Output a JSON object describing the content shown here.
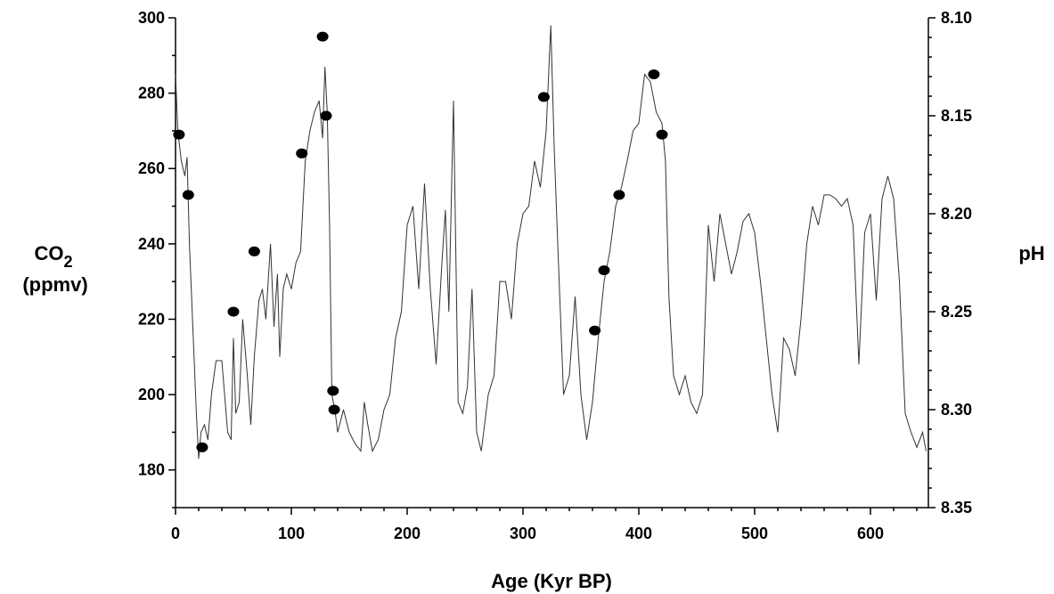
{
  "chart_data": {
    "type": "line",
    "title": "",
    "xlabel": "Age (Kyr BP)",
    "ylabel_left_main": "CO",
    "ylabel_left_sub": "2",
    "ylabel_left_unit": "(ppmv)",
    "ylabel_right": "pH",
    "xlim": [
      0,
      650
    ],
    "ylim_left": [
      170,
      300
    ],
    "ylim_right": [
      8.35,
      8.1
    ],
    "x_ticks": [
      "0",
      "100",
      "200",
      "300",
      "400",
      "500",
      "600"
    ],
    "y_left_ticks": [
      "180",
      "200",
      "220",
      "240",
      "260",
      "280",
      "300"
    ],
    "y_right_ticks": [
      "8.10",
      "8.15",
      "8.20",
      "8.25",
      "8.30",
      "8.35"
    ],
    "grid": false,
    "series": [
      {
        "type": "line",
        "x": [
          0,
          2,
          5,
          8,
          10,
          12,
          14,
          16,
          18,
          20,
          22,
          25,
          28,
          31,
          35,
          40,
          45,
          48,
          50,
          52,
          55,
          58,
          62,
          65,
          68,
          72,
          75,
          78,
          82,
          85,
          88,
          90,
          93,
          96,
          100,
          104,
          108,
          112,
          116,
          120,
          124,
          127,
          129,
          131,
          133,
          135,
          138,
          140,
          145,
          150,
          155,
          160,
          163,
          166,
          170,
          175,
          180,
          185,
          190,
          195,
          200,
          205,
          210,
          215,
          220,
          225,
          230,
          233,
          236,
          240,
          244,
          248,
          252,
          256,
          260,
          264,
          270,
          275,
          280,
          285,
          290,
          295,
          300,
          305,
          310,
          315,
          320,
          324,
          327,
          330,
          335,
          340,
          345,
          350,
          355,
          360,
          365,
          370,
          375,
          380,
          385,
          390,
          395,
          400,
          405,
          410,
          415,
          420,
          423,
          426,
          430,
          435,
          440,
          445,
          450,
          455,
          460,
          465,
          470,
          475,
          480,
          485,
          490,
          495,
          500,
          505,
          510,
          515,
          520,
          525,
          530,
          535,
          540,
          545,
          550,
          555,
          560,
          565,
          570,
          575,
          580,
          585,
          590,
          595,
          600,
          605,
          610,
          615,
          620,
          625,
          630,
          635,
          640,
          645,
          648
        ],
        "values": [
          285,
          270,
          262,
          258,
          263,
          240,
          225,
          210,
          195,
          183,
          190,
          192,
          188,
          200,
          209,
          209,
          190,
          188,
          215,
          195,
          198,
          220,
          205,
          192,
          210,
          225,
          228,
          220,
          240,
          218,
          232,
          210,
          228,
          232,
          228,
          235,
          238,
          262,
          270,
          275,
          278,
          268,
          287,
          275,
          245,
          200,
          195,
          190,
          196,
          190,
          187,
          185,
          198,
          192,
          185,
          188,
          196,
          200,
          215,
          222,
          245,
          250,
          228,
          256,
          228,
          208,
          235,
          249,
          222,
          278,
          198,
          195,
          202,
          228,
          190,
          185,
          200,
          205,
          230,
          230,
          220,
          240,
          248,
          250,
          262,
          255,
          270,
          298,
          265,
          240,
          200,
          205,
          226,
          200,
          188,
          198,
          215,
          230,
          238,
          250,
          255,
          262,
          270,
          272,
          285,
          283,
          275,
          272,
          262,
          226,
          205,
          200,
          205,
          198,
          195,
          200,
          245,
          230,
          248,
          240,
          232,
          238,
          246,
          248,
          243,
          230,
          215,
          200,
          190,
          215,
          212,
          205,
          220,
          240,
          250,
          245,
          253,
          253,
          252,
          250,
          252,
          245,
          208,
          243,
          248,
          225,
          252,
          258,
          252,
          230,
          195,
          190,
          186,
          190,
          185
        ]
      },
      {
        "type": "scatter",
        "x": [
          3,
          11,
          23,
          50,
          68,
          109,
          127,
          130,
          136,
          137,
          318,
          362,
          370,
          383,
          413,
          420
        ],
        "values": [
          269,
          253,
          186,
          222,
          238,
          264,
          295,
          274,
          201,
          196,
          279,
          217,
          233,
          253,
          285,
          269
        ]
      }
    ]
  }
}
